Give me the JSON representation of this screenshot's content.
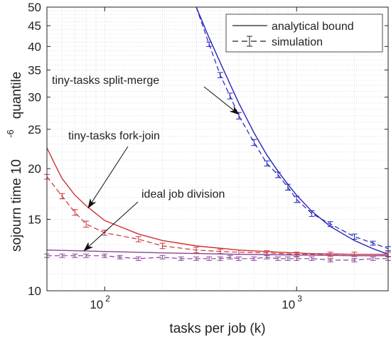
{
  "chart_data": {
    "type": "line",
    "xlabel": "tasks per job (k)",
    "ylabel": "sojourn time 10",
    "ylabel_exponent": "-6",
    "ylabel_suffix": "quantile",
    "x_scale": "log",
    "y_scale": "log",
    "xlim": [
      50,
      3000
    ],
    "ylim": [
      10,
      50
    ],
    "grid": true,
    "x_ticks": [
      {
        "value": 100,
        "base": "10",
        "exp": "2"
      },
      {
        "value": 1000,
        "base": "10",
        "exp": "3"
      }
    ],
    "y_ticks": [
      {
        "value": 10,
        "label": "10"
      },
      {
        "value": 15,
        "label": "15"
      },
      {
        "value": 20,
        "label": "20"
      },
      {
        "value": 25,
        "label": "25"
      },
      {
        "value": 30,
        "label": "30"
      },
      {
        "value": 35,
        "label": "35"
      },
      {
        "value": 40,
        "label": "40"
      },
      {
        "value": 45,
        "label": "45"
      },
      {
        "value": 50,
        "label": "50"
      }
    ],
    "legend": {
      "position": "top-right",
      "entries": [
        {
          "label": "analytical bound",
          "style": "solid"
        },
        {
          "label": "simulation",
          "style": "dashed-errorbar"
        }
      ]
    },
    "series": [
      {
        "name": "tiny-tasks split-merge",
        "color": "#2222bb",
        "bound": {
          "x": [
            300,
            350,
            400,
            450,
            500,
            600,
            700,
            800,
            900,
            1000,
            1200,
            1500,
            2000,
            2500,
            3000
          ],
          "y": [
            50,
            42,
            36.5,
            32.3,
            29,
            24.5,
            21.6,
            19.7,
            18.3,
            17.2,
            15.7,
            14.4,
            13.3,
            12.7,
            12.3
          ]
        },
        "simulation": {
          "x": [
            300,
            350,
            400,
            450,
            500,
            600,
            700,
            800,
            900,
            1000,
            1200,
            1500,
            2000,
            2500,
            3000
          ],
          "y": [
            50,
            40.5,
            34,
            30.2,
            27,
            23.2,
            20.6,
            19.3,
            18,
            16.8,
            15.5,
            14.6,
            13.6,
            13.1,
            12.7
          ],
          "err": [
            0,
            0.5,
            0.5,
            0.5,
            0.5,
            0.4,
            0.3,
            0.3,
            0.3,
            0.3,
            0.25,
            0.2,
            0.2,
            0.15,
            0.15
          ]
        }
      },
      {
        "name": "tiny-tasks fork-join",
        "color": "#cc3333",
        "bound": {
          "x": [
            50,
            55,
            60,
            70,
            80,
            100,
            150,
            200,
            300,
            500,
            800,
            1200,
            2000,
            3000
          ],
          "y": [
            22.5,
            20.5,
            18.9,
            17.2,
            16.2,
            14.9,
            13.8,
            13.3,
            12.9,
            12.6,
            12.45,
            12.35,
            12.3,
            12.3
          ]
        },
        "simulation": {
          "x": [
            50,
            60,
            70,
            80,
            100,
            150,
            200,
            300,
            400,
            500,
            700,
            1000,
            1500,
            2000,
            3000
          ],
          "y": [
            19.1,
            17.1,
            15.6,
            14.6,
            13.9,
            13.4,
            12.9,
            12.6,
            12.5,
            12.45,
            12.4,
            12.3,
            12.3,
            12.3,
            12.3
          ],
          "err": [
            0.25,
            0.25,
            0.25,
            0.25,
            0.2,
            0.2,
            0.2,
            0.2,
            0.15,
            0.15,
            0.15,
            0.15,
            0.15,
            0.15,
            0.15
          ]
        }
      },
      {
        "name": "ideal job division",
        "color": "#884499",
        "bound": {
          "x": [
            50,
            100,
            200,
            500,
            1000,
            2000,
            3000
          ],
          "y": [
            12.6,
            12.5,
            12.4,
            12.3,
            12.25,
            12.2,
            12.2
          ]
        },
        "simulation": {
          "x": [
            50,
            60,
            70,
            80,
            100,
            120,
            150,
            200,
            250,
            300,
            350,
            400,
            450,
            500,
            600,
            700,
            800,
            900,
            1000,
            1200,
            1500,
            2000,
            2500,
            3000
          ],
          "y": [
            12.2,
            12.2,
            12.2,
            12.2,
            12.2,
            12.1,
            12.0,
            12.1,
            12.0,
            12.0,
            12.0,
            12.0,
            12.1,
            12.0,
            12.0,
            12.1,
            12.0,
            12.0,
            12.0,
            12.0,
            11.9,
            11.9,
            12.0,
            12.0
          ],
          "err": [
            0.12,
            0.12,
            0.12,
            0.12,
            0.12,
            0.12,
            0.12,
            0.12,
            0.12,
            0.12,
            0.12,
            0.12,
            0.12,
            0.12,
            0.12,
            0.12,
            0.12,
            0.12,
            0.12,
            0.12,
            0.12,
            0.12,
            0.12,
            0.12
          ]
        }
      }
    ],
    "annotations": [
      {
        "text": "tiny-tasks split-merge",
        "target_x": 500,
        "target_y": 27.2,
        "series": 0
      },
      {
        "text": "tiny-tasks fork-join",
        "target_x": 82,
        "target_y": 16.0,
        "series": 1
      },
      {
        "text": "ideal job division",
        "target_x": 78,
        "target_y": 12.55,
        "series": 2
      }
    ]
  }
}
